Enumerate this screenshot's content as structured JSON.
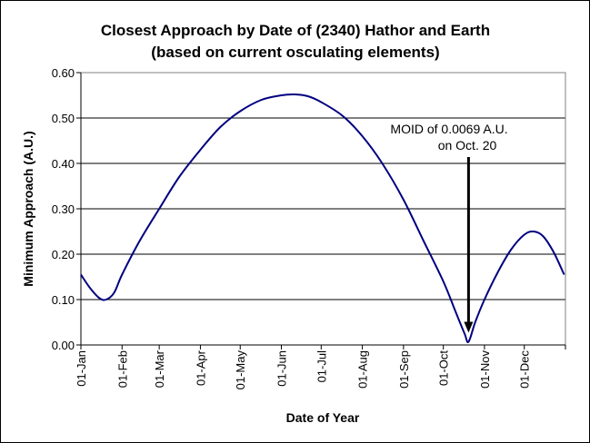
{
  "chart_data": {
    "type": "line",
    "title": "Closest Approach by Date of (2340) Hathor and Earth",
    "subtitle": "(based on current osculating elements)",
    "xlabel": "Date of Year",
    "ylabel": "Minimum Approach (A.U.)",
    "ylim": [
      0,
      0.6
    ],
    "yticks": [
      "0.00",
      "0.10",
      "0.20",
      "0.30",
      "0.40",
      "0.50",
      "0.60"
    ],
    "xticks": [
      "01-Jan",
      "01-Feb",
      "01-Mar",
      "01-Apr",
      "01-May",
      "01-Jun",
      "01-Jul",
      "01-Aug",
      "01-Sep",
      "01-Oct",
      "01-Nov",
      "01-Dec"
    ],
    "xtick_days": [
      1,
      32,
      60,
      91,
      121,
      152,
      182,
      213,
      244,
      274,
      305,
      335
    ],
    "grid": "horizontal",
    "line_color": "#000080",
    "points": [
      {
        "day": 1,
        "value": 0.155
      },
      {
        "day": 8,
        "value": 0.125
      },
      {
        "day": 15,
        "value": 0.103
      },
      {
        "day": 20,
        "value": 0.1
      },
      {
        "day": 26,
        "value": 0.115
      },
      {
        "day": 32,
        "value": 0.155
      },
      {
        "day": 45,
        "value": 0.228
      },
      {
        "day": 60,
        "value": 0.3
      },
      {
        "day": 75,
        "value": 0.37
      },
      {
        "day": 91,
        "value": 0.43
      },
      {
        "day": 106,
        "value": 0.48
      },
      {
        "day": 121,
        "value": 0.515
      },
      {
        "day": 137,
        "value": 0.54
      },
      {
        "day": 152,
        "value": 0.55
      },
      {
        "day": 162,
        "value": 0.552
      },
      {
        "day": 172,
        "value": 0.548
      },
      {
        "day": 182,
        "value": 0.535
      },
      {
        "day": 198,
        "value": 0.505
      },
      {
        "day": 213,
        "value": 0.46
      },
      {
        "day": 228,
        "value": 0.4
      },
      {
        "day": 244,
        "value": 0.32
      },
      {
        "day": 259,
        "value": 0.23
      },
      {
        "day": 274,
        "value": 0.14
      },
      {
        "day": 283,
        "value": 0.075
      },
      {
        "day": 290,
        "value": 0.025
      },
      {
        "day": 293,
        "value": 0.007
      },
      {
        "day": 298,
        "value": 0.05
      },
      {
        "day": 305,
        "value": 0.1
      },
      {
        "day": 315,
        "value": 0.16
      },
      {
        "day": 325,
        "value": 0.21
      },
      {
        "day": 335,
        "value": 0.243
      },
      {
        "day": 342,
        "value": 0.25
      },
      {
        "day": 349,
        "value": 0.24
      },
      {
        "day": 357,
        "value": 0.205
      },
      {
        "day": 365,
        "value": 0.155
      }
    ],
    "annotation": {
      "line1": "MOID of 0.0069 A.U.",
      "line2": "on Oct. 20",
      "day": 293,
      "value": 0.0069
    }
  }
}
